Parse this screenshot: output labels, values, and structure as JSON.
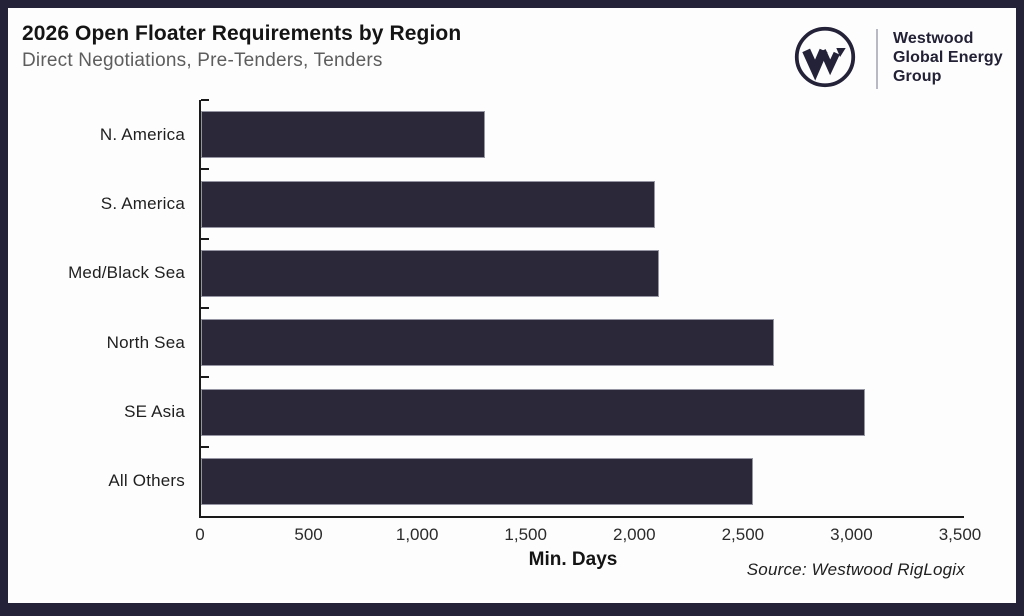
{
  "header": {
    "title": "2026 Open Floater Requirements by Region",
    "subtitle": "Direct Negotiations, Pre-Tenders, Tenders"
  },
  "logo": {
    "monogram": "W",
    "lines": [
      "Westwood",
      "Global Energy",
      "Group"
    ]
  },
  "chart_data": {
    "type": "bar",
    "orientation": "horizontal",
    "title": "2026 Open Floater Requirements by Region",
    "subtitle": "Direct Negotiations, Pre-Tenders, Tenders",
    "categories": [
      "N. America",
      "S. America",
      "Med/Black Sea",
      "North Sea",
      "SE Asia",
      "All Others"
    ],
    "values": [
      1310,
      2090,
      2110,
      2640,
      3060,
      2540
    ],
    "xlabel": "Min. Days",
    "ylabel": "",
    "xlim": [
      0,
      3500
    ],
    "x_ticks": [
      0,
      500,
      1000,
      1500,
      2000,
      2500,
      3000,
      3500
    ],
    "x_tick_labels": [
      "0",
      "500",
      "1,000",
      "1,500",
      "2,000",
      "2,500",
      "3,000",
      "3,500"
    ],
    "grid": false,
    "legend": false,
    "bar_color": "#2a2839"
  },
  "source": "Source: Westwood RigLogix",
  "colors": {
    "frame": "#242238",
    "bar": "#2a2839",
    "background": "#fdfdfd",
    "axis": "#1a1a1a",
    "subtitle_text": "#5d5d5d"
  }
}
